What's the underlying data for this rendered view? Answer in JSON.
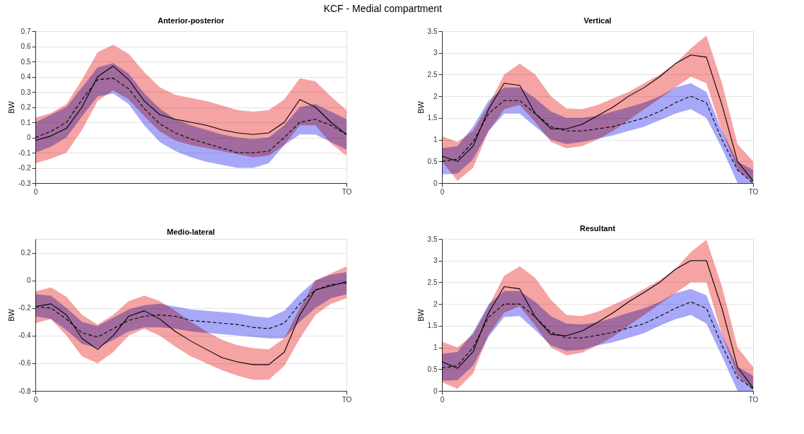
{
  "chart_data": [
    {
      "type": "other",
      "title": "KCF - Medial compartment"
    },
    {
      "type": "line",
      "colors": [
        "#f5a3a3",
        "#a8a8f8"
      ],
      "title": "Anterior-posterior",
      "ylabel": "BW",
      "grid": "y",
      "categories": [
        "0",
        null,
        null,
        null,
        null,
        null,
        null,
        null,
        null,
        null,
        null,
        null,
        null,
        null,
        null,
        null,
        null,
        null,
        null,
        null,
        "TO"
      ],
      "ylim": [
        -0.3,
        0.7
      ],
      "yticks": [
        -0.3,
        -0.2,
        -0.1,
        0,
        0.1,
        0.2,
        0.3,
        0.4,
        0.5,
        0.6,
        0.7
      ],
      "series": [
        {
          "color": "#000000",
          "line_style": "solid",
          "values": [
            -0.02,
            0.01,
            0.06,
            0.2,
            0.4,
            0.47,
            0.38,
            0.24,
            0.15,
            0.12,
            0.1,
            0.08,
            0.05,
            0.03,
            0.02,
            0.03,
            0.1,
            0.25,
            0.2,
            0.1,
            0.02
          ],
          "upper": [
            0.13,
            0.16,
            0.22,
            0.38,
            0.56,
            0.61,
            0.55,
            0.43,
            0.33,
            0.28,
            0.26,
            0.24,
            0.21,
            0.18,
            0.17,
            0.18,
            0.25,
            0.39,
            0.37,
            0.27,
            0.18
          ],
          "lower": [
            -0.17,
            -0.14,
            -0.1,
            0.05,
            0.24,
            0.31,
            0.25,
            0.14,
            0.04,
            -0.02,
            -0.05,
            -0.07,
            -0.09,
            -0.11,
            -0.13,
            -0.12,
            -0.05,
            0.08,
            0.08,
            -0.04,
            -0.12
          ]
        },
        {
          "color": "#000000",
          "line_style": "dashed",
          "values": [
            0.0,
            0.04,
            0.1,
            0.25,
            0.38,
            0.39,
            0.32,
            0.19,
            0.09,
            0.03,
            -0.01,
            -0.04,
            -0.07,
            -0.1,
            -0.1,
            -0.09,
            0.0,
            0.1,
            0.12,
            0.08,
            0.02
          ],
          "upper": [
            0.1,
            0.15,
            0.2,
            0.33,
            0.46,
            0.49,
            0.42,
            0.29,
            0.19,
            0.12,
            0.08,
            0.05,
            0.02,
            0.0,
            -0.01,
            0.0,
            0.08,
            0.2,
            0.22,
            0.17,
            0.12
          ],
          "lower": [
            -0.1,
            -0.06,
            0.0,
            0.14,
            0.27,
            0.29,
            0.22,
            0.08,
            -0.03,
            -0.09,
            -0.13,
            -0.16,
            -0.18,
            -0.2,
            -0.2,
            -0.17,
            -0.05,
            0.02,
            0.02,
            -0.03,
            -0.08
          ]
        }
      ]
    },
    {
      "type": "line",
      "colors": [
        "#f5a3a3",
        "#a8a8f8"
      ],
      "title": "Vertical",
      "ylabel": "BW",
      "grid": "y",
      "categories": [
        "0",
        null,
        null,
        null,
        null,
        null,
        null,
        null,
        null,
        null,
        null,
        null,
        null,
        null,
        null,
        null,
        null,
        null,
        null,
        null,
        "TO"
      ],
      "ylim": [
        0,
        3.5
      ],
      "yticks": [
        0,
        0.5,
        1,
        1.5,
        2,
        2.5,
        3,
        3.5
      ],
      "series": [
        {
          "color": "#000000",
          "line_style": "solid",
          "values": [
            0.62,
            0.5,
            0.85,
            1.7,
            2.3,
            2.25,
            1.6,
            1.25,
            1.25,
            1.35,
            1.55,
            1.75,
            2.0,
            2.2,
            2.45,
            2.75,
            2.95,
            2.9,
            1.8,
            0.5,
            0.05
          ],
          "upper": [
            1.08,
            0.95,
            1.2,
            1.8,
            2.5,
            2.75,
            2.5,
            2.0,
            1.72,
            1.7,
            1.8,
            1.95,
            2.1,
            2.3,
            2.5,
            2.75,
            3.1,
            3.4,
            2.3,
            0.9,
            0.5
          ],
          "lower": [
            0.5,
            0.05,
            0.35,
            1.2,
            1.7,
            1.8,
            1.4,
            0.95,
            0.8,
            0.85,
            1.0,
            1.2,
            1.45,
            1.7,
            1.95,
            2.2,
            2.45,
            2.3,
            1.2,
            0.3,
            0.02
          ]
        },
        {
          "color": "#000000",
          "line_style": "dashed",
          "values": [
            0.5,
            0.55,
            0.95,
            1.6,
            1.9,
            1.9,
            1.6,
            1.3,
            1.2,
            1.2,
            1.25,
            1.3,
            1.4,
            1.5,
            1.65,
            1.85,
            2.0,
            1.85,
            1.0,
            0.3,
            0.0
          ],
          "upper": [
            0.8,
            0.85,
            1.3,
            1.9,
            2.2,
            2.2,
            1.95,
            1.65,
            1.5,
            1.5,
            1.55,
            1.65,
            1.75,
            1.85,
            2.0,
            2.2,
            2.3,
            2.1,
            1.2,
            0.5,
            0.3
          ],
          "lower": [
            0.2,
            0.22,
            0.55,
            1.2,
            1.6,
            1.6,
            1.3,
            1.0,
            0.9,
            0.95,
            1.02,
            1.1,
            1.2,
            1.3,
            1.45,
            1.6,
            1.7,
            1.5,
            0.8,
            0.0,
            0.0
          ]
        }
      ]
    },
    {
      "type": "line",
      "colors": [
        "#f5a3a3",
        "#a8a8f8"
      ],
      "title": "Medio-lateral",
      "ylabel": "BW",
      "grid": "y",
      "categories": [
        "0",
        null,
        null,
        null,
        null,
        null,
        null,
        null,
        null,
        null,
        null,
        null,
        null,
        null,
        null,
        null,
        null,
        null,
        null,
        null,
        "TO"
      ],
      "ylim": [
        -0.8,
        0.3
      ],
      "yticks": [
        -0.8,
        -0.6,
        -0.4,
        -0.2,
        0,
        0.2
      ],
      "series": [
        {
          "color": "#000000",
          "line_style": "solid",
          "values": [
            -0.19,
            -0.17,
            -0.25,
            -0.42,
            -0.5,
            -0.4,
            -0.26,
            -0.22,
            -0.28,
            -0.37,
            -0.44,
            -0.5,
            -0.56,
            -0.59,
            -0.61,
            -0.61,
            -0.52,
            -0.25,
            -0.07,
            -0.04,
            -0.01
          ],
          "upper": [
            -0.08,
            -0.05,
            -0.12,
            -0.25,
            -0.32,
            -0.25,
            -0.15,
            -0.11,
            -0.15,
            -0.22,
            -0.3,
            -0.37,
            -0.43,
            -0.47,
            -0.49,
            -0.5,
            -0.42,
            -0.2,
            0.0,
            0.05,
            0.1
          ],
          "lower": [
            -0.31,
            -0.28,
            -0.4,
            -0.55,
            -0.6,
            -0.52,
            -0.4,
            -0.35,
            -0.4,
            -0.48,
            -0.55,
            -0.6,
            -0.65,
            -0.69,
            -0.72,
            -0.72,
            -0.62,
            -0.42,
            -0.25,
            -0.17,
            -0.13
          ]
        },
        {
          "color": "#000000",
          "line_style": "dashed",
          "values": [
            -0.19,
            -0.2,
            -0.28,
            -0.38,
            -0.41,
            -0.35,
            -0.29,
            -0.26,
            -0.25,
            -0.26,
            -0.29,
            -0.3,
            -0.31,
            -0.32,
            -0.34,
            -0.35,
            -0.31,
            -0.17,
            -0.07,
            -0.03,
            -0.02
          ],
          "upper": [
            -0.1,
            -0.11,
            -0.2,
            -0.3,
            -0.33,
            -0.27,
            -0.21,
            -0.18,
            -0.17,
            -0.19,
            -0.21,
            -0.22,
            -0.23,
            -0.24,
            -0.26,
            -0.27,
            -0.22,
            -0.1,
            0.0,
            0.04,
            0.06
          ],
          "lower": [
            -0.26,
            -0.28,
            -0.36,
            -0.46,
            -0.49,
            -0.43,
            -0.37,
            -0.34,
            -0.34,
            -0.35,
            -0.37,
            -0.38,
            -0.39,
            -0.4,
            -0.41,
            -0.42,
            -0.42,
            -0.3,
            -0.2,
            -0.13,
            -0.1
          ]
        }
      ]
    },
    {
      "type": "line",
      "colors": [
        "#f5a3a3",
        "#a8a8f8"
      ],
      "title": "Resultant",
      "ylabel": "BW",
      "grid": "y",
      "categories": [
        "0",
        null,
        null,
        null,
        null,
        null,
        null,
        null,
        null,
        null,
        null,
        null,
        null,
        null,
        null,
        null,
        null,
        null,
        null,
        null,
        "TO"
      ],
      "ylim": [
        0,
        3.5
      ],
      "yticks": [
        0,
        0.5,
        1,
        1.5,
        2,
        2.5,
        3,
        3.5
      ],
      "series": [
        {
          "color": "#000000",
          "line_style": "solid",
          "values": [
            0.67,
            0.52,
            0.9,
            1.8,
            2.4,
            2.35,
            1.7,
            1.3,
            1.27,
            1.38,
            1.58,
            1.8,
            2.05,
            2.27,
            2.5,
            2.8,
            3.0,
            3.0,
            1.9,
            0.55,
            0.07
          ],
          "upper": [
            1.13,
            1.0,
            1.3,
            1.95,
            2.65,
            2.87,
            2.6,
            2.1,
            1.75,
            1.72,
            1.82,
            1.98,
            2.15,
            2.35,
            2.55,
            2.8,
            3.2,
            3.48,
            2.4,
            1.0,
            0.55
          ],
          "lower": [
            0.2,
            0.05,
            0.4,
            1.3,
            1.8,
            1.95,
            1.5,
            1.0,
            0.82,
            0.88,
            1.05,
            1.25,
            1.5,
            1.75,
            2.0,
            2.25,
            2.5,
            2.5,
            1.3,
            0.35,
            0.02
          ]
        },
        {
          "color": "#000000",
          "line_style": "dashed",
          "values": [
            0.53,
            0.58,
            1.0,
            1.7,
            2.0,
            2.0,
            1.7,
            1.35,
            1.22,
            1.22,
            1.28,
            1.35,
            1.45,
            1.55,
            1.72,
            1.9,
            2.05,
            1.9,
            1.05,
            0.3,
            0.05
          ],
          "upper": [
            0.85,
            0.9,
            1.35,
            2.0,
            2.3,
            2.3,
            2.05,
            1.72,
            1.55,
            1.53,
            1.58,
            1.68,
            1.8,
            1.9,
            2.05,
            2.25,
            2.35,
            2.2,
            1.3,
            0.55,
            0.35
          ],
          "lower": [
            0.23,
            0.25,
            0.58,
            1.25,
            1.7,
            1.72,
            1.4,
            1.05,
            0.92,
            0.95,
            1.05,
            1.12,
            1.22,
            1.33,
            1.5,
            1.65,
            1.75,
            1.55,
            0.8,
            0.0,
            0.0
          ]
        }
      ]
    }
  ]
}
